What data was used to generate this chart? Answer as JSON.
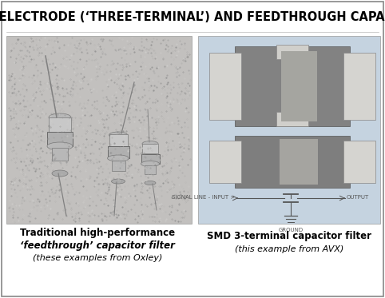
{
  "title": "THREE-ELECTRODE (‘THREE-TERMINAL’) AND FEEDTHROUGH CAPACITORS",
  "title_fontsize": 10.5,
  "bg_color": "#ffffff",
  "border_color": "#888888",
  "right_panel_bg": "#c5d3e0",
  "left_caption_line1": "Traditional high-performance",
  "left_caption_line2": "‘feedthrough’ capacitor filter",
  "left_caption_line3": "(these examples from Oxley)",
  "right_caption_line1": "SMD 3-terminal capacitor filter",
  "right_caption_line2": "(this example from AVX)",
  "caption_fontsize": 8.5,
  "caption_italic_fontsize": 8.0,
  "signal_label": "SIGNAL LINE - INPUT >",
  "output_label": "OUTPUT",
  "ground_label": "GROUND",
  "diagram_fontsize": 5.0
}
